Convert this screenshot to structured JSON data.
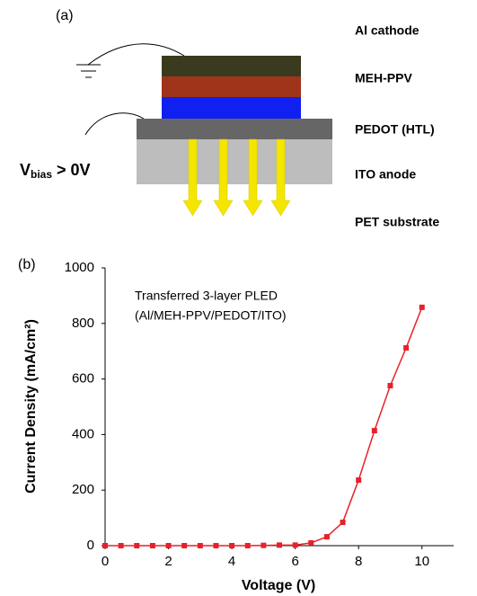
{
  "diagram": {
    "panel_label": "(a)",
    "layers": [
      "Al cathode",
      "MEH-PPV",
      "PEDOT (HTL)",
      "ITO anode",
      "PET substrate"
    ],
    "bias": {
      "main": "V",
      "sub": "bias",
      "rest": " > 0V"
    }
  },
  "chart_data": {
    "type": "line",
    "panel_label": "(b)",
    "xlabel": "Voltage (V)",
    "ylabel": "Current Density (mA/cm²)",
    "annotations": [
      "Transferred 3-layer PLED",
      "(Al/MEH-PPV/PEDOT/ITO)"
    ],
    "x": [
      0,
      0.5,
      1,
      1.5,
      2,
      2.5,
      3,
      3.5,
      4,
      4.5,
      5,
      5.5,
      6,
      6.5,
      7,
      7.5,
      8,
      8.5,
      9,
      9.5,
      10
    ],
    "series": [
      {
        "name": "Transferred 3-layer PLED",
        "color": "#e8202a",
        "values": [
          0,
          0,
          0,
          0,
          0,
          0,
          0,
          0,
          0,
          0,
          1,
          2,
          2,
          10,
          32,
          84,
          236,
          414,
          576,
          712,
          858
        ]
      }
    ],
    "xlim": [
      0,
      11
    ],
    "xticks": [
      0,
      2,
      4,
      6,
      8,
      10
    ],
    "ylim": [
      0,
      1000
    ],
    "yticks": [
      0,
      200,
      400,
      600,
      800,
      1000
    ],
    "grid": false
  }
}
